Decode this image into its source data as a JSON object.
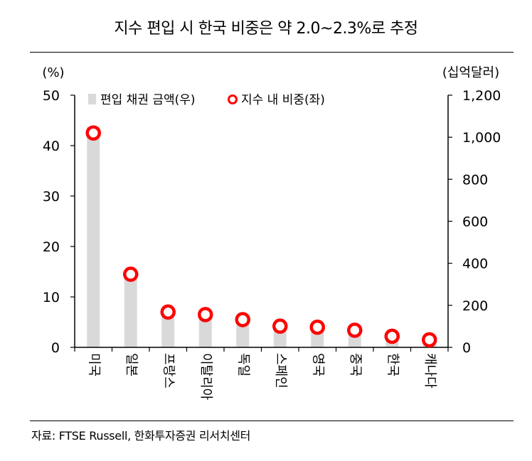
{
  "title": "지수 편입 시 한국 비중은 약 2.0~2.3%로 추정",
  "source": "자료: FTSE Russell, 한화투자증권 리서치센터",
  "chart_data": {
    "type": "bar",
    "categories": [
      "미국",
      "일본",
      "프랑스",
      "이탈리아",
      "독일",
      "스페인",
      "영국",
      "중국",
      "한국",
      "캐나다"
    ],
    "left_axis": {
      "unit": "(%)",
      "ylim": [
        0,
        50
      ],
      "ticks": [
        "0",
        "10",
        "20",
        "30",
        "40",
        "50"
      ]
    },
    "right_axis": {
      "unit": "(십억달러)",
      "ylim": [
        0,
        1200
      ],
      "ticks": [
        "0",
        "200",
        "400",
        "600",
        "800",
        "1,000",
        "1,200"
      ]
    },
    "series": [
      {
        "name": "편입 채권 금액(우)",
        "kind": "bar",
        "axis": "right",
        "color": "#d9d9d9",
        "values": [
          1050,
          350,
          175,
          160,
          135,
          105,
          100,
          85,
          60,
          35
        ]
      },
      {
        "name": "지수 내 비중(좌)",
        "kind": "marker",
        "axis": "left",
        "color": "#ff0000",
        "values": [
          42.5,
          14.5,
          7.0,
          6.5,
          5.5,
          4.2,
          4.0,
          3.4,
          2.2,
          1.5
        ]
      }
    ],
    "legend_position": "top-left",
    "grid": false
  },
  "colors": {
    "bar": "#d9d9d9",
    "marker": "#ff0000",
    "axis": "#000000"
  }
}
